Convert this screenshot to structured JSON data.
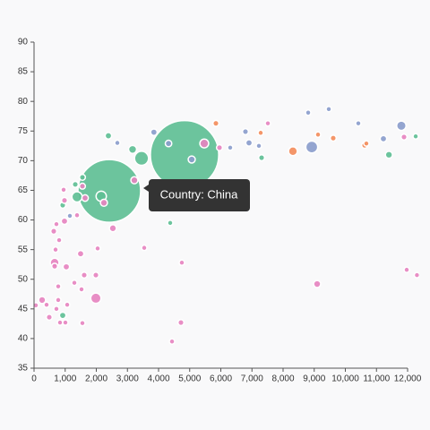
{
  "chart_data": {
    "type": "bubble",
    "tooltip": "Country: China",
    "xlim": [
      0,
      12000
    ],
    "xticks": [
      0,
      {
        "value": 1000,
        "label": "1,000"
      },
      {
        "value": 2000,
        "label": "2,000"
      },
      {
        "value": 3000,
        "label": "3,000"
      },
      {
        "value": 4000,
        "label": "4,000"
      },
      {
        "value": 5000,
        "label": "5,000"
      },
      {
        "value": 6000,
        "label": "6,000"
      },
      {
        "value": 7000,
        "label": "7,000"
      },
      {
        "value": 8000,
        "label": "8,000"
      },
      {
        "value": 9000,
        "label": "9,000"
      },
      {
        "value": 10000,
        "label": "10,000"
      },
      {
        "value": 11000,
        "label": "11,000"
      },
      {
        "value": 12000,
        "label": "12,000"
      }
    ],
    "ylim": [
      35,
      90
    ],
    "yticks": [
      35,
      40,
      45,
      50,
      55,
      60,
      65,
      70,
      75,
      80,
      85,
      90
    ],
    "series": [
      {
        "color": "#5fbf95",
        "x": [
          4835,
          2417,
          2388,
          3165,
          3453,
          12260,
          11400,
          7310,
          4374,
          921,
          1324,
          1554,
          921,
          2158,
          1381
        ],
        "y": [
          71,
          64.9,
          74.2,
          71.9,
          70.4,
          74.1,
          71,
          70.5,
          59.5,
          62.5,
          66,
          67.2,
          43.9,
          64,
          63.9
        ],
        "size": [
          1318,
          1110,
          12,
          18,
          55,
          8,
          14,
          10,
          8,
          10,
          10,
          10,
          12,
          30,
          30
        ]
      },
      {
        "color": "#f38d5c",
        "x": [
          5842,
          8316,
          9122,
          9611,
          10619,
          10676,
          7281
        ],
        "y": [
          76.3,
          71.6,
          74.4,
          73.8,
          72.6,
          72.9,
          74.7
        ],
        "size": [
          10,
          22,
          8,
          10,
          10,
          8,
          8
        ]
      },
      {
        "color": "#8b9dcc",
        "x": [
          8921,
          11799,
          8806,
          9468,
          6791,
          6906,
          7223,
          6302,
          10417,
          11223,
          2676,
          5065,
          1151,
          3850,
          4320
        ],
        "y": [
          72.3,
          75.9,
          78.1,
          78.7,
          74.9,
          73,
          72.5,
          72.2,
          76.3,
          73.7,
          73,
          70.2,
          60.7,
          74.8,
          72.9
        ],
        "size": [
          40,
          25,
          8,
          8,
          10,
          12,
          8,
          8,
          8,
          12,
          8,
          14,
          8,
          12,
          12
        ]
      },
      {
        "color": "#e684c0",
        "x": [
          259,
          58,
          403,
          777,
          1065,
          719,
          489,
          835,
          1007,
          1554,
          662,
          662,
          691,
          806,
          633,
          719,
          978,
          978,
          1381,
          950,
          1554,
          1640,
          1496,
          1611,
          1525,
          1986,
          1986,
          1295,
          777,
          1036,
          2043,
          2532,
          3540,
          4748,
          4719,
          4432,
          9094,
          11971,
          12300,
          3223,
          2245,
          5468,
          7511,
          11885,
          5957
        ],
        "y": [
          46.5,
          45.6,
          45.7,
          46.5,
          45.7,
          45,
          43.6,
          42.7,
          42.7,
          42.6,
          52.2,
          52.8,
          55,
          56.6,
          58.1,
          59.3,
          59.8,
          63.3,
          60.8,
          65.1,
          65.7,
          63.7,
          54.3,
          50.7,
          48.3,
          50.7,
          46.8,
          49.4,
          48.8,
          52.1,
          55.2,
          58.6,
          55.3,
          52.8,
          42.7,
          39.5,
          49.2,
          51.6,
          50.7,
          66.7,
          62.9,
          72.9,
          76.3,
          74,
          72.2
        ],
        "size": [
          14,
          8,
          8,
          8,
          8,
          8,
          10,
          8,
          8,
          8,
          10,
          22,
          8,
          8,
          10,
          8,
          12,
          10,
          8,
          8,
          10,
          12,
          12,
          10,
          8,
          10,
          30,
          8,
          8,
          12,
          8,
          14,
          8,
          8,
          10,
          8,
          14,
          8,
          8,
          14,
          14,
          22,
          8,
          10,
          10
        ]
      }
    ]
  }
}
